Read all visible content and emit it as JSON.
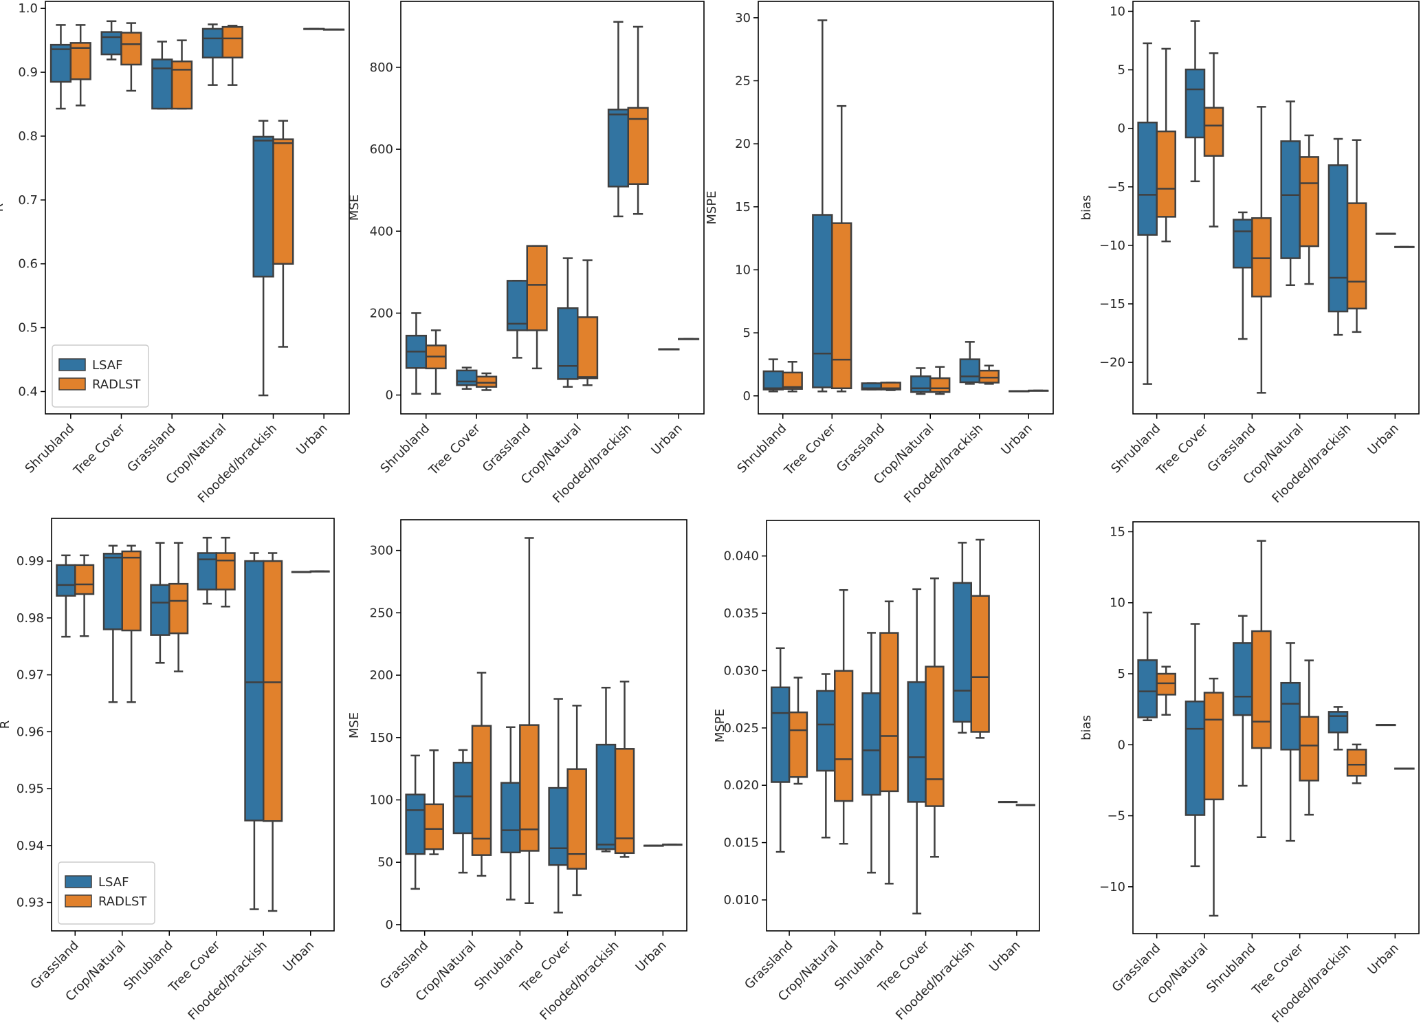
{
  "colors": {
    "LSAF": "#3274a1",
    "RADLST": "#e1812c",
    "edge": "#3f3f3f"
  },
  "chart_data": [
    {
      "type": "box",
      "ylabel": "R",
      "categories": [
        "Shrubland",
        "Tree Cover",
        "Grassland",
        "Crop/Natural",
        "Flooded/brackish",
        "Urban"
      ],
      "ylim": [
        0.365,
        1.011
      ],
      "yticks": [
        0.4,
        0.5,
        0.6,
        0.7,
        0.8,
        0.9,
        1.0
      ],
      "ytick_labels": [
        "0.4",
        "0.5",
        "0.6",
        "0.7",
        "0.8",
        "0.9",
        "1.0"
      ],
      "legend": "lower-left",
      "series": [
        {
          "name": "LSAF",
          "boxes": [
            [
              0.843,
              0.885,
              0.936,
              0.943,
              0.974
            ],
            [
              0.92,
              0.928,
              0.955,
              0.963,
              0.98
            ],
            [
              0.843,
              0.843,
              0.906,
              0.92,
              0.948
            ],
            [
              0.88,
              0.923,
              0.953,
              0.968,
              0.975
            ],
            [
              0.394,
              0.58,
              0.793,
              0.799,
              0.824
            ],
            [
              0.968,
              0.968,
              0.968,
              0.968,
              0.968
            ]
          ]
        },
        {
          "name": "RADLST",
          "boxes": [
            [
              0.848,
              0.889,
              0.938,
              0.946,
              0.974
            ],
            [
              0.871,
              0.912,
              0.944,
              0.962,
              0.977
            ],
            [
              0.843,
              0.843,
              0.904,
              0.917,
              0.95
            ],
            [
              0.88,
              0.923,
              0.953,
              0.971,
              0.973
            ],
            [
              0.47,
              0.6,
              0.789,
              0.795,
              0.824
            ],
            [
              0.967,
              0.967,
              0.967,
              0.967,
              0.967
            ]
          ]
        }
      ]
    },
    {
      "type": "box",
      "ylabel": "MSE",
      "categories": [
        "Shrubland",
        "Tree Cover",
        "Grassland",
        "Crop/Natural",
        "Flooded/brackish",
        "Urban"
      ],
      "ylim": [
        -46,
        961
      ],
      "yticks": [
        0,
        200,
        400,
        600,
        800
      ],
      "ytick_labels": [
        "0",
        "200",
        "400",
        "600",
        "800"
      ],
      "series": [
        {
          "name": "LSAF",
          "boxes": [
            [
              3,
              66,
              106,
              145,
              200
            ],
            [
              15,
              24,
              33,
              60,
              67
            ],
            [
              91,
              158,
              174,
              279,
              279
            ],
            [
              20,
              39,
              71,
              212,
              334
            ],
            [
              436,
              509,
              685,
              697,
              911
            ],
            [
              112,
              112,
              112,
              112,
              112
            ]
          ]
        },
        {
          "name": "RADLST",
          "boxes": [
            [
              3,
              65,
              94,
              121,
              158
            ],
            [
              12,
              20,
              30,
              45,
              53
            ],
            [
              65,
              158,
              269,
              364,
              364
            ],
            [
              24,
              41,
              44,
              190,
              329
            ],
            [
              442,
              515,
              674,
              701,
              899
            ],
            [
              137,
              137,
              137,
              137,
              137
            ]
          ]
        }
      ]
    },
    {
      "type": "box",
      "ylabel": "MSPE",
      "categories": [
        "Shrubland",
        "Tree Cover",
        "Grassland",
        "Crop/Natural",
        "Flooded/brackish",
        "Urban"
      ],
      "ylim": [
        -1.43,
        31.3
      ],
      "yticks": [
        0,
        5,
        10,
        15,
        20,
        25,
        30
      ],
      "ytick_labels": [
        "0",
        "5",
        "10",
        "15",
        "20",
        "25",
        "30"
      ],
      "series": [
        {
          "name": "LSAF",
          "boxes": [
            [
              0.35,
              0.5,
              0.6,
              1.95,
              2.9
            ],
            [
              0.35,
              0.67,
              3.36,
              14.36,
              29.8
            ],
            [
              0.5,
              0.5,
              0.6,
              1.0,
              1.0
            ],
            [
              0.15,
              0.3,
              0.6,
              1.55,
              2.2
            ],
            [
              0.95,
              1.08,
              1.54,
              2.9,
              4.28
            ],
            [
              0.38,
              0.38,
              0.38,
              0.38,
              0.38
            ]
          ]
        },
        {
          "name": "RADLST",
          "boxes": [
            [
              0.35,
              0.55,
              0.7,
              1.85,
              2.7
            ],
            [
              0.35,
              0.6,
              2.87,
              13.7,
              23.0
            ],
            [
              0.45,
              0.5,
              0.6,
              1.05,
              1.05
            ],
            [
              0.15,
              0.3,
              0.6,
              1.4,
              2.3
            ],
            [
              0.95,
              1.05,
              1.45,
              2.0,
              2.4
            ],
            [
              0.42,
              0.42,
              0.42,
              0.42,
              0.42
            ]
          ]
        }
      ]
    },
    {
      "type": "box",
      "ylabel": "bias",
      "categories": [
        "Shrubland",
        "Tree Cover",
        "Grassland",
        "Crop/Natural",
        "Flooded/brackish",
        "Urban"
      ],
      "ylim": [
        -24.4,
        10.85
      ],
      "yticks": [
        -20,
        -15,
        -10,
        -5,
        0,
        5,
        10
      ],
      "ytick_labels": [
        "−20",
        "−15",
        "−10",
        "−5",
        "0",
        "5",
        "10"
      ],
      "series": [
        {
          "name": "LSAF",
          "boxes": [
            [
              -21.85,
              -9.1,
              -5.68,
              0.5,
              7.27
            ],
            [
              -4.53,
              -0.78,
              3.33,
              5.03,
              9.17
            ],
            [
              -18.0,
              -11.9,
              -8.8,
              -7.8,
              -7.18
            ],
            [
              -13.4,
              -11.1,
              -5.7,
              -1.1,
              2.3
            ],
            [
              -17.65,
              -15.65,
              -12.77,
              -3.15,
              -0.9
            ],
            [
              -9.0,
              -9.0,
              -9.0,
              -9.0,
              -9.0
            ]
          ]
        },
        {
          "name": "RADLST",
          "boxes": [
            [
              -9.66,
              -7.56,
              -5.16,
              -0.26,
              6.8
            ],
            [
              -8.39,
              -2.35,
              0.24,
              1.76,
              6.42
            ],
            [
              -22.6,
              -14.37,
              -11.1,
              -7.67,
              1.84
            ],
            [
              -13.3,
              -10.07,
              -4.69,
              -2.45,
              -0.6
            ],
            [
              -17.4,
              -15.4,
              -13.1,
              -6.4,
              -1.0
            ],
            [
              -10.13,
              -10.13,
              -10.13,
              -10.13,
              -10.13
            ]
          ]
        }
      ]
    },
    {
      "type": "box",
      "ylabel": "R",
      "categories": [
        "Grassland",
        "Crop/Natural",
        "Shrubland",
        "Tree Cover",
        "Flooded/brackish",
        "Urban"
      ],
      "ylim": [
        0.925,
        0.9975
      ],
      "yticks": [
        0.93,
        0.94,
        0.95,
        0.96,
        0.97,
        0.98,
        0.99
      ],
      "ytick_labels": [
        "0.93",
        "0.94",
        "0.95",
        "0.96",
        "0.97",
        "0.98",
        "0.99"
      ],
      "legend": "lower-left",
      "series": [
        {
          "name": "LSAF",
          "boxes": [
            [
              0.9767,
              0.9839,
              0.9858,
              0.9893,
              0.991
            ],
            [
              0.9652,
              0.978,
              0.9906,
              0.9913,
              0.9927
            ],
            [
              0.9721,
              0.977,
              0.9827,
              0.9858,
              0.9932
            ],
            [
              0.9825,
              0.985,
              0.9903,
              0.9914,
              0.9941
            ],
            [
              0.9288,
              0.9444,
              0.9687,
              0.99,
              0.9914
            ],
            [
              0.9881,
              0.9881,
              0.9881,
              0.9881,
              0.9881
            ]
          ]
        },
        {
          "name": "RADLST",
          "boxes": [
            [
              0.9768,
              0.9842,
              0.9859,
              0.9893,
              0.991
            ],
            [
              0.9652,
              0.9778,
              0.9906,
              0.9917,
              0.9927
            ],
            [
              0.9706,
              0.9773,
              0.983,
              0.986,
              0.9932
            ],
            [
              0.982,
              0.985,
              0.9901,
              0.9914,
              0.9941
            ],
            [
              0.9285,
              0.9443,
              0.9687,
              0.99,
              0.9914
            ],
            [
              0.9882,
              0.9882,
              0.9882,
              0.9882,
              0.9882
            ]
          ]
        }
      ]
    },
    {
      "type": "box",
      "ylabel": "MSE",
      "categories": [
        "Grassland",
        "Crop/Natural",
        "Shrubland",
        "Tree Cover",
        "Flooded/brackish",
        "Urban"
      ],
      "ylim": [
        -5,
        324.6
      ],
      "yticks": [
        0,
        50,
        100,
        150,
        200,
        250,
        300
      ],
      "ytick_labels": [
        "0",
        "50",
        "100",
        "150",
        "200",
        "250",
        "300"
      ],
      "series": [
        {
          "name": "LSAF",
          "boxes": [
            [
              28.7,
              56.6,
              91.8,
              104.3,
              135.6
            ],
            [
              41.7,
              73.3,
              102.8,
              129.9,
              140
            ],
            [
              20.1,
              57.9,
              75.7,
              113.7,
              158.3
            ],
            [
              9.7,
              47.8,
              61.3,
              109.6,
              181
            ],
            [
              58.7,
              60.5,
              64.2,
              144.3,
              190
            ],
            [
              63.4,
              63.4,
              63.4,
              63.4,
              63.4
            ]
          ]
        },
        {
          "name": "RADLST",
          "boxes": [
            [
              56.4,
              60.5,
              76.7,
              96.5,
              139.8
            ],
            [
              39.1,
              55.8,
              68.9,
              159.4,
              202
            ],
            [
              17.2,
              59.2,
              76.4,
              160,
              310
            ],
            [
              23.7,
              44.8,
              56.6,
              124.7,
              175.6
            ],
            [
              54.3,
              57.4,
              69.2,
              140.9,
              194.9
            ],
            [
              64.2,
              64.2,
              64.2,
              64.2,
              64.2
            ]
          ]
        }
      ]
    },
    {
      "type": "box",
      "ylabel": "MSPE",
      "categories": [
        "Grassland",
        "Crop/Natural",
        "Shrubland",
        "Tree Cover",
        "Flooded/brackish",
        "Urban"
      ],
      "ylim": [
        0.0073,
        0.0431
      ],
      "yticks": [
        0.01,
        0.015,
        0.02,
        0.025,
        0.03,
        0.035,
        0.04
      ],
      "ytick_labels": [
        "0.010",
        "0.015",
        "0.020",
        "0.025",
        "0.030",
        "0.035",
        "0.040"
      ],
      "series": [
        {
          "name": "LSAF",
          "boxes": [
            [
              0.01419,
              0.02028,
              0.0263,
              0.02854,
              0.03196
            ],
            [
              0.01544,
              0.02127,
              0.0253,
              0.02823,
              0.0297
            ],
            [
              0.01238,
              0.01917,
              0.02305,
              0.02803,
              0.0333
            ],
            [
              0.00881,
              0.01855,
              0.02245,
              0.029,
              0.03711
            ],
            [
              0.02458,
              0.02554,
              0.02825,
              0.03765,
              0.04116
            ],
            [
              0.01855,
              0.01855,
              0.01855,
              0.01855,
              0.01855
            ]
          ]
        },
        {
          "name": "RADLST",
          "boxes": [
            [
              0.02013,
              0.02072,
              0.0248,
              0.02636,
              0.02939
            ],
            [
              0.0149,
              0.01863,
              0.02228,
              0.02998,
              0.03703
            ],
            [
              0.01142,
              0.01948,
              0.0243,
              0.03329,
              0.03604
            ],
            [
              0.01376,
              0.01818,
              0.02053,
              0.03035,
              0.03805
            ],
            [
              0.02413,
              0.02466,
              0.02944,
              0.03652,
              0.04142
            ],
            [
              0.01829,
              0.01829,
              0.01829,
              0.01829,
              0.01829
            ]
          ]
        }
      ]
    },
    {
      "type": "box",
      "ylabel": "bias",
      "categories": [
        "Grassland",
        "Crop/Natural",
        "Shrubland",
        "Tree Cover",
        "Flooded/brackish",
        "Urban"
      ],
      "ylim": [
        -13.3,
        15.7
      ],
      "yticks": [
        -10,
        -5,
        0,
        5,
        10,
        15
      ],
      "ytick_labels": [
        "−10",
        "−5",
        "0",
        "5",
        "10",
        "15"
      ],
      "series": [
        {
          "name": "LSAF",
          "boxes": [
            [
              1.72,
              1.93,
              3.76,
              5.96,
              9.31
            ],
            [
              -8.55,
              -4.95,
              1.12,
              3.05,
              8.51
            ],
            [
              -2.89,
              2.09,
              3.39,
              7.16,
              9.08
            ],
            [
              -6.77,
              -0.34,
              2.89,
              4.36,
              7.16
            ],
            [
              -0.34,
              0.87,
              2.02,
              2.32,
              2.66
            ],
            [
              1.4,
              1.4,
              1.4,
              1.4,
              1.4
            ]
          ]
        },
        {
          "name": "RADLST",
          "boxes": [
            [
              2.11,
              3.53,
              4.33,
              5.0,
              5.5
            ],
            [
              -12.04,
              -3.85,
              1.77,
              3.67,
              4.66
            ],
            [
              -6.51,
              -0.23,
              1.63,
              8.0,
              14.36
            ],
            [
              -4.93,
              -2.52,
              -0.05,
              1.97,
              5.94
            ],
            [
              -2.71,
              -2.18,
              -1.4,
              -0.34,
              0.02
            ],
            [
              -1.67,
              -1.67,
              -1.67,
              -1.67,
              -1.67
            ]
          ]
        }
      ]
    }
  ]
}
